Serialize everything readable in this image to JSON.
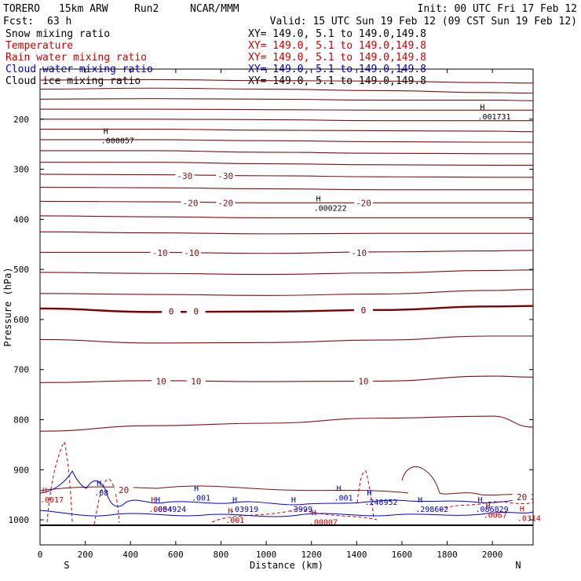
{
  "header": {
    "model": "TORERO",
    "resolution": "15km ARW",
    "run": "Run2",
    "org": "NCAR/MMM",
    "init": "Init: 00 UTC Fri 17 Feb 12",
    "fcst_label": "Fcst:",
    "fcst_value": "63 h",
    "valid": "Valid: 15 UTC Sun 19 Feb 12 (09 CST Sun 19 Feb 12)"
  },
  "fields": [
    {
      "name": "Snow mixing ratio",
      "xy": "XY= 149.0,  5.1 to 149.0,149.8",
      "color": "#000000"
    },
    {
      "name": "Temperature",
      "xy": "XY= 149.0,  5.1 to 149.0,149.8",
      "color": "#cc0000"
    },
    {
      "name": "Rain water mixing ratio",
      "xy": "XY= 149.0,  5.1 to 149.0,149.8",
      "color": "#cc0000"
    },
    {
      "name": "Cloud water mixing ratio",
      "xy": "XY= 149.0,  5.1 to 149.0,149.8",
      "color": "#0000cc"
    },
    {
      "name": "Cloud ice mixing ratio",
      "xy": "XY= 149.0,  5.1 to 149.0,149.8",
      "color": "#000000"
    }
  ],
  "chart_data": {
    "type": "line",
    "title": "",
    "xlabel": "Distance (km)",
    "ylabel": "Pressure (hPa)",
    "xlim": [
      0,
      2180
    ],
    "ylim": [
      1050,
      100
    ],
    "x_ticks": [
      0,
      200,
      400,
      600,
      800,
      1000,
      1200,
      1400,
      1600,
      1800,
      2000
    ],
    "y_ticks": [
      200,
      300,
      400,
      500,
      600,
      700,
      800,
      900,
      1000
    ],
    "x_end_labels": {
      "left": "S",
      "right": "N"
    },
    "temperature_contour_color": "#7a1010",
    "zero_isotherm_color": "#7a0000",
    "series": [
      {
        "name": "Temperature",
        "unit": "C",
        "contours": [
          {
            "level": -50,
            "x": [
              0,
              500,
              1000,
              1500,
              2000,
              2180
            ],
            "y": [
              122,
              121,
              123,
              124,
              127,
              128
            ]
          },
          {
            "level": -48,
            "x": [
              0,
              500,
              1000,
              1500,
              2000,
              2180
            ],
            "y": [
              140,
              138,
              140,
              143,
              147,
              148
            ]
          },
          {
            "level": -46,
            "x": [
              0,
              500,
              1000,
              1500,
              2000,
              2180
            ],
            "y": [
              160,
              159,
              160,
              162,
              162,
              163
            ]
          },
          {
            "level": -44,
            "x": [
              0,
              500,
              1000,
              1500,
              2000,
              2180
            ],
            "y": [
              180,
              180,
              181,
              182,
              182,
              182
            ]
          },
          {
            "level": -42,
            "x": [
              0,
              500,
              1000,
              1500,
              2000,
              2180
            ],
            "y": [
              200,
              200,
              201,
              203,
              203,
              203
            ]
          },
          {
            "level": -40,
            "x": [
              0,
              500,
              1000,
              1500,
              2000,
              2180
            ],
            "y": [
              220,
              220,
              222,
              223,
              224,
              225
            ]
          },
          {
            "level": -38,
            "x": [
              0,
              500,
              1000,
              1500,
              2000,
              2180
            ],
            "y": [
              241,
              241,
              243,
              245,
              246,
              246
            ]
          },
          {
            "level": -36,
            "x": [
              0,
              500,
              1000,
              1500,
              2000,
              2180
            ],
            "y": [
              263,
              263,
              266,
              268,
              269,
              269
            ]
          },
          {
            "level": -34,
            "x": [
              0,
              500,
              1000,
              1500,
              2000,
              2180
            ],
            "y": [
              286,
              286,
              289,
              291,
              292,
              292
            ]
          },
          {
            "level": -30,
            "x": [
              0,
              500,
              1000,
              1500,
              2000,
              2180
            ],
            "y": [
              310,
              311,
              313,
              315,
              316,
              316
            ]
          },
          {
            "level": -26,
            "x": [
              0,
              500,
              1000,
              1500,
              2000,
              2180
            ],
            "y": [
              336,
              337,
              339,
              341,
              341,
              341
            ]
          },
          {
            "level": -20,
            "x": [
              0,
              500,
              1000,
              1500,
              2000,
              2180
            ],
            "y": [
              364,
              365,
              367,
              367,
              367,
              367
            ]
          },
          {
            "level": -16,
            "x": [
              0,
              500,
              1000,
              1500,
              2000,
              2180
            ],
            "y": [
              393,
              395,
              397,
              397,
              397,
              397
            ]
          },
          {
            "level": -12,
            "x": [
              0,
              500,
              1000,
              1500,
              2000,
              2180
            ],
            "y": [
              425,
              427,
              429,
              428,
              428,
              428
            ]
          },
          {
            "level": -10,
            "x": [
              0,
              500,
              1000,
              1500,
              2000,
              2180
            ],
            "y": [
              466,
              466,
              468,
              465,
              463,
              462
            ]
          },
          {
            "level": -6,
            "x": [
              0,
              500,
              1000,
              1500,
              2000,
              2180
            ],
            "y": [
              506,
              508,
              510,
              507,
              502,
              501
            ]
          },
          {
            "level": -2,
            "x": [
              0,
              500,
              1000,
              1500,
              2000,
              2180
            ],
            "y": [
              548,
              550,
              552,
              549,
              542,
              540
            ]
          },
          {
            "level": 0,
            "x": [
              0,
              500,
              1000,
              1500,
              2000,
              2180
            ],
            "y": [
              578,
              585,
              584,
              581,
              574,
              573
            ]
          },
          {
            "level": 4,
            "x": [
              0,
              500,
              1000,
              1500,
              2000,
              2180
            ],
            "y": [
              640,
              647,
              646,
              641,
              633,
              633
            ]
          },
          {
            "level": 10,
            "x": [
              0,
              500,
              1000,
              1500,
              2000,
              2180
            ],
            "y": [
              726,
              722,
              724,
              723,
              713,
              715
            ]
          },
          {
            "level": 14,
            "x": [
              0,
              500,
              1000,
              1500,
              2000,
              2180
            ],
            "y": [
              823,
              812,
              807,
              797,
              793,
              815
            ]
          }
        ]
      }
    ],
    "contour_labels": [
      {
        "text": "-30",
        "x": 640,
        "p": 313,
        "color": "#7a1010"
      },
      {
        "text": "-30",
        "x": 820,
        "p": 313,
        "color": "#7a1010"
      },
      {
        "text": "-20",
        "x": 665,
        "p": 367,
        "color": "#7a1010"
      },
      {
        "text": "-20",
        "x": 820,
        "p": 367,
        "color": "#7a1010"
      },
      {
        "text": "-20",
        "x": 1430,
        "p": 367,
        "color": "#7a1010"
      },
      {
        "text": "-10",
        "x": 530,
        "p": 467,
        "color": "#7a1010"
      },
      {
        "text": "-10",
        "x": 670,
        "p": 467,
        "color": "#7a1010"
      },
      {
        "text": "-10",
        "x": 1410,
        "p": 467,
        "color": "#7a1010"
      },
      {
        "text": "0",
        "x": 580,
        "p": 584,
        "color": "#7a0000"
      },
      {
        "text": "0",
        "x": 690,
        "p": 584,
        "color": "#7a0000"
      },
      {
        "text": "0",
        "x": 1430,
        "p": 581,
        "color": "#7a0000"
      },
      {
        "text": "10",
        "x": 535,
        "p": 723,
        "color": "#7a1010"
      },
      {
        "text": "10",
        "x": 690,
        "p": 723,
        "color": "#7a1010"
      },
      {
        "text": "10",
        "x": 1430,
        "p": 723,
        "color": "#7a1010"
      },
      {
        "text": "20",
        "x": 370,
        "p": 940,
        "color": "#7a1010"
      },
      {
        "text": "20",
        "x": 2130,
        "p": 954,
        "color": "#7a1010"
      }
    ],
    "extrema": [
      {
        "mark": "H",
        "value": ".000057",
        "x": 270,
        "p": 245,
        "color": "#000000"
      },
      {
        "mark": "H",
        "value": ".000222",
        "x": 1210,
        "p": 380,
        "color": "#000000"
      },
      {
        "mark": "H",
        "value": ".001731",
        "x": 1935,
        "p": 197,
        "color": "#000000"
      },
      {
        "mark": "H",
        "value": ".0017",
        "x": 0,
        "p": 962,
        "color": "#cc0000"
      },
      {
        "mark": "H",
        "value": ".0054",
        "x": 480,
        "p": 981,
        "color": "#cc0000"
      },
      {
        "mark": "H",
        "value": ".001",
        "x": 820,
        "p": 1003,
        "color": "#cc0000"
      },
      {
        "mark": "H",
        "value": ".00007",
        "x": 1190,
        "p": 1007,
        "color": "#cc0000"
      },
      {
        "mark": "H",
        "value": ".0067",
        "x": 1960,
        "p": 993,
        "color": "#cc0000"
      },
      {
        "mark": "H",
        "value": ".0314",
        "x": 2110,
        "p": 999,
        "color": "#cc0000"
      },
      {
        "mark": "H",
        "value": ".08",
        "x": 240,
        "p": 948,
        "color": "#0000cc"
      },
      {
        "mark": "H",
        "value": ".004924",
        "x": 500,
        "p": 981,
        "color": "#0000cc"
      },
      {
        "mark": "H",
        "value": ".001",
        "x": 670,
        "p": 958,
        "color": "#0000cc"
      },
      {
        "mark": "H",
        "value": ".03919",
        "x": 840,
        "p": 981,
        "color": "#0000cc"
      },
      {
        "mark": "H",
        "value": ".3999",
        "x": 1100,
        "p": 981,
        "color": "#0000cc"
      },
      {
        "mark": "H",
        "value": ".001",
        "x": 1300,
        "p": 958,
        "color": "#0000cc"
      },
      {
        "mark": "H",
        "value": ".248952",
        "x": 1435,
        "p": 967,
        "color": "#0000cc"
      },
      {
        "mark": "H",
        "value": ".298602",
        "x": 1660,
        "p": 981,
        "color": "#0000cc"
      },
      {
        "mark": "H",
        "value": ".086829",
        "x": 1925,
        "p": 981,
        "color": "#0000cc"
      }
    ],
    "grid": false,
    "legend": "top-left"
  }
}
